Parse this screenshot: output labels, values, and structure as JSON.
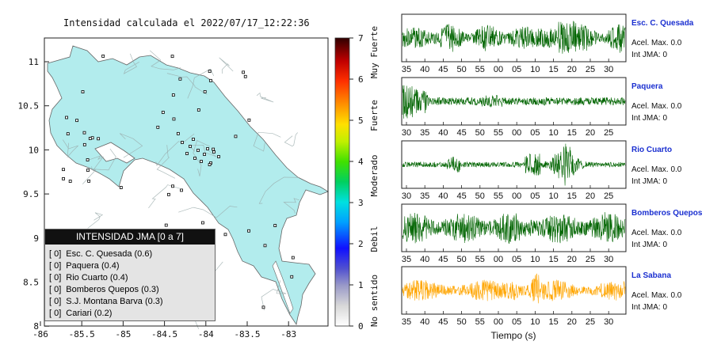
{
  "map": {
    "title": "Intensidad calculada el 2022/07/17_12:22:36",
    "x_ticks": [
      "-86",
      "-85.5",
      "-85",
      "-84.5",
      "-84",
      "-83.5",
      "-83"
    ],
    "y_ticks": [
      "11",
      "10.5",
      "10",
      "9.5",
      "9",
      "8.5",
      "8"
    ],
    "legend": {
      "title": "INTENSIDAD JMA [0 a 7]",
      "items": [
        {
          "badge": "[ 0]",
          "label": "Esc. C. Quesada (0.6)"
        },
        {
          "badge": "[ 0]",
          "label": "Paquera (0.4)"
        },
        {
          "badge": "[ 0]",
          "label": "Rio Cuarto (0.4)"
        },
        {
          "badge": "[ 0]",
          "label": "Bomberos Quepos (0.3)"
        },
        {
          "badge": "[ 0]",
          "label": "S.J. Montana Barva (0.3)"
        },
        {
          "badge": "[ 0]",
          "label": "Cariari (0.2)"
        }
      ]
    },
    "land_color": "#b2eced",
    "station_stations_note": ""
  },
  "colorbar": {
    "ticks": [
      "0",
      "1",
      "2",
      "3",
      "4",
      "5",
      "6",
      "7"
    ],
    "labels": [
      "No sentido",
      "Debil",
      "Moderado",
      "Fuerte",
      "Muy Fuerte"
    ]
  },
  "chart_data": {
    "type": "line",
    "xlabel": "Tiempo (s)",
    "panels": [
      {
        "name": "Esc. C. Quesada",
        "accel": "Acel. Max. 0.0",
        "jma": "Int JMA: 0",
        "color": "#006400",
        "ticks": [
          "35",
          "40",
          "45",
          "50",
          "55",
          "00",
          "05",
          "10",
          "15",
          "20",
          "25",
          "30"
        ]
      },
      {
        "name": "Paquera",
        "accel": "Acel. Max. 0.0",
        "jma": "Int JMA: 0",
        "color": "#006400",
        "ticks": [
          "30",
          "35",
          "40",
          "45",
          "50",
          "55",
          "00",
          "05",
          "10",
          "15",
          "20",
          "25"
        ]
      },
      {
        "name": "Rio Cuarto",
        "accel": "Acel. Max. 0.0",
        "jma": "Int JMA: 0",
        "color": "#006400",
        "ticks": [
          "30",
          "35",
          "40",
          "45",
          "50",
          "55",
          "00",
          "05",
          "10",
          "15",
          "20",
          "25"
        ]
      },
      {
        "name": "Bomberos Quepos",
        "accel": "Acel. Max. 0.0",
        "jma": "Int JMA: 0",
        "color": "#006400",
        "ticks": [
          "35",
          "40",
          "45",
          "50",
          "55",
          "00",
          "05",
          "10",
          "15",
          "20",
          "25",
          "30"
        ]
      },
      {
        "name": "La Sabana",
        "accel": "Acel. Max. 0.0",
        "jma": "Int JMA: 0",
        "color": "#ffa500",
        "ticks": [
          "35",
          "40",
          "45",
          "50",
          "55",
          "00",
          "05",
          "10",
          "15",
          "20",
          "25",
          "30"
        ]
      }
    ]
  }
}
